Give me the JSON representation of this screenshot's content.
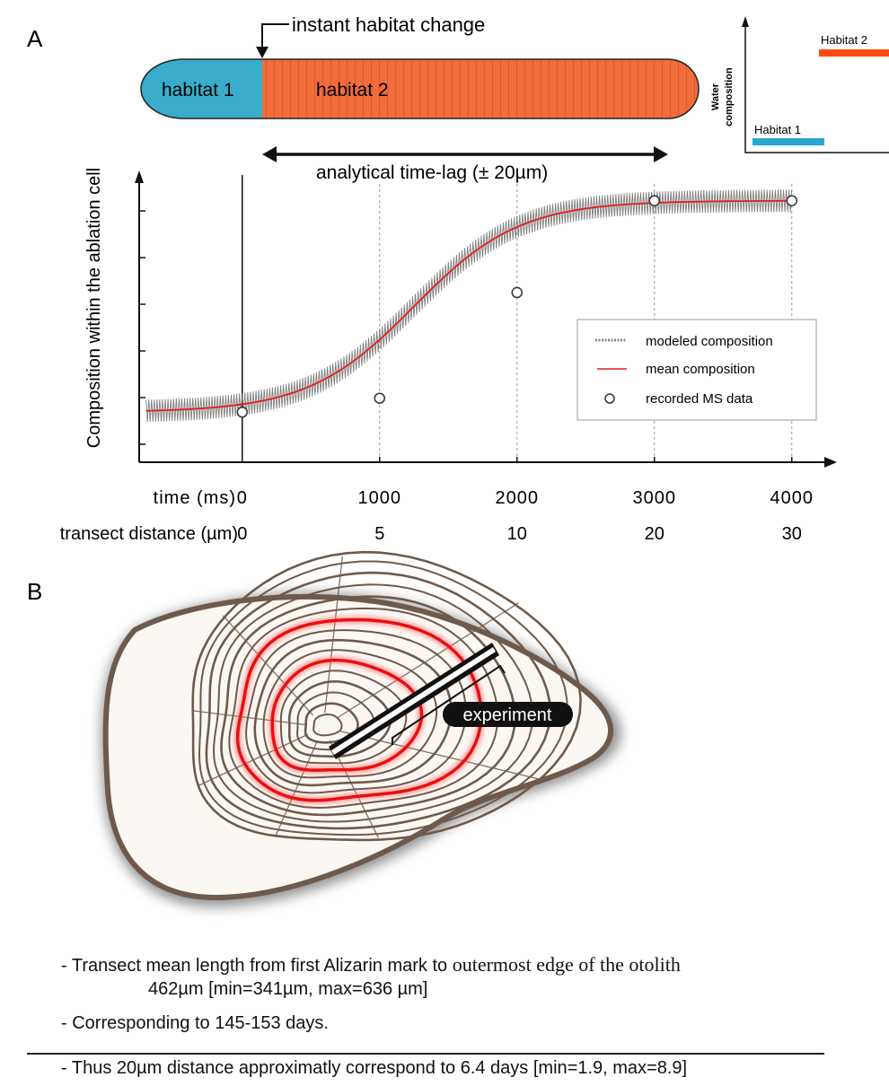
{
  "panel_a": {
    "label": "A",
    "habitat_bar": {
      "habitat1_label": "habitat 1",
      "habitat2_label": "habitat 2",
      "habitat1_color": "#3aaccb",
      "habitat2_color": "#f26c3c",
      "change_label": "instant habitat change"
    },
    "inset": {
      "ylabel_line1": "Water",
      "ylabel_line2": "composition",
      "habitat1_label": "Habitat 1",
      "habitat2_label": "Habitat 2",
      "habitat1_color": "#2aa6cf",
      "habitat2_color": "#ff4a12"
    },
    "timelag_label": "analytical time-lag (± 20µm)",
    "legend": {
      "modeled": "modeled composition",
      "mean": "mean composition",
      "recorded": "recorded MS data",
      "mean_color": "#e02020"
    },
    "ylabel": "Composition within the ablation cell",
    "time_row_label": "time (ms)",
    "distance_row_label": "transect distance (µm)"
  },
  "chart_data": {
    "type": "line",
    "xlabel": "time (ms)",
    "ylabel": "Composition within the ablation cell",
    "x_ticks": [
      "0",
      "1000",
      "2000",
      "3000",
      "4000"
    ],
    "x2_label": "transect distance (µm)",
    "x2_ticks": [
      "0",
      "5",
      "10",
      "20",
      "30"
    ],
    "xlim": [
      -750,
      4250
    ],
    "ylim": [
      0,
      1
    ],
    "grid": "vertical dotted at x ticks",
    "legend_position": "bottom-right",
    "series": [
      {
        "name": "mean composition",
        "kind": "sigmoid",
        "low": 0.18,
        "high": 0.94,
        "midpoint_ms": 1250,
        "steepness": 0.0026,
        "color": "#e02020"
      },
      {
        "name": "modeled composition",
        "kind": "band",
        "half_width": 0.04,
        "color": "#666666"
      },
      {
        "name": "recorded MS data",
        "kind": "points",
        "points": [
          {
            "x": 0,
            "y": 0.18
          },
          {
            "x": 1000,
            "y": 0.23
          },
          {
            "x": 2000,
            "y": 0.61
          },
          {
            "x": 3000,
            "y": 0.94
          },
          {
            "x": 4000,
            "y": 0.94
          }
        ]
      }
    ]
  },
  "panel_b": {
    "label": "B",
    "experiment_label": "experiment"
  },
  "notes": {
    "line1_sans": "- Transect mean length from first Alizarin mark to ",
    "line1_serif": "outermost edge of the otolith",
    "line1b": "462µm [min=341µm, max=636 µm]",
    "line2": "- Corresponding to 145-153 days.",
    "line3": "- Thus 20µm distance approximatly correspond to 6.4 days [min=1.9, max=8.9]"
  }
}
